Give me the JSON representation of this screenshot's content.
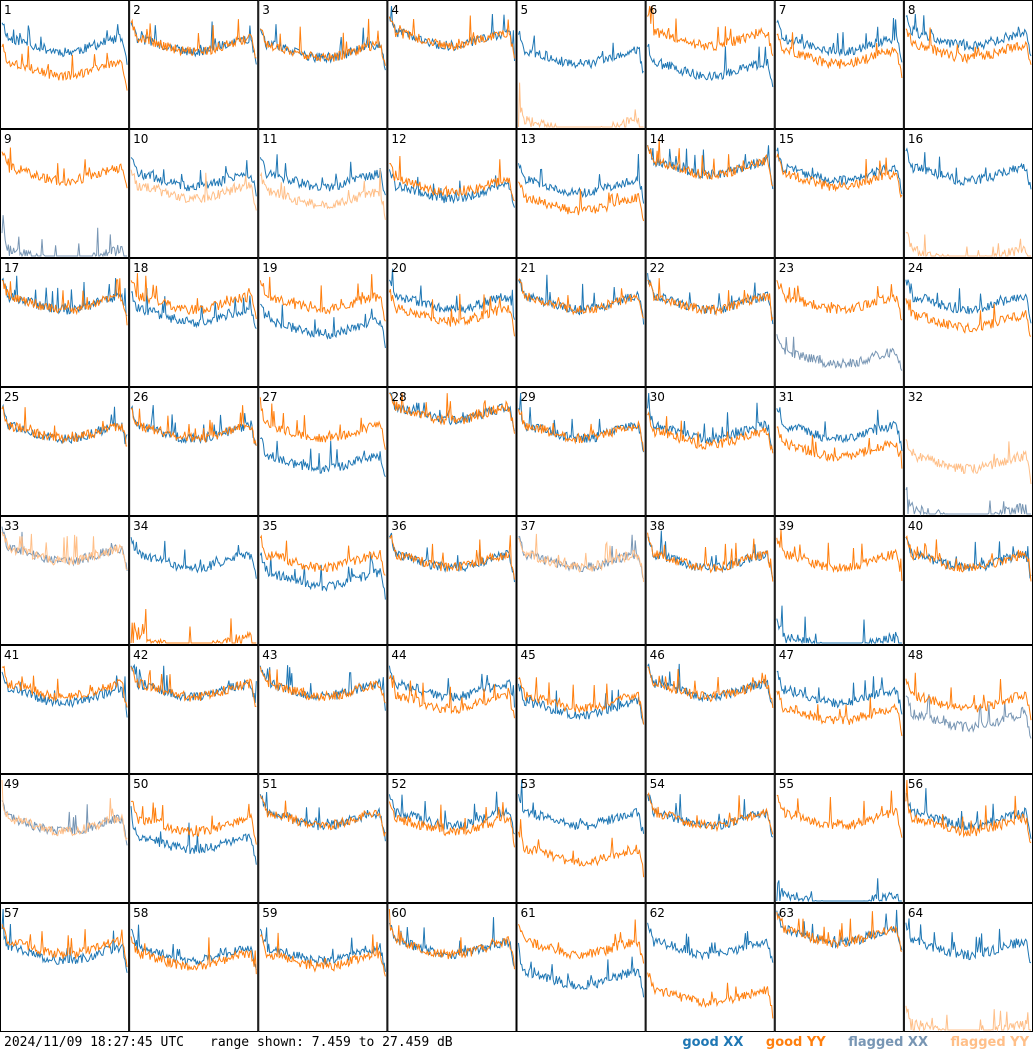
{
  "footer": {
    "timestamp": "2024/11/09 18:27:45 UTC",
    "range_text": "range shown: 7.459 to 27.459 dB"
  },
  "legend": {
    "good_xx": "good XX",
    "good_yy": "good YY",
    "flagged_xx": "flagged XX",
    "flagged_yy": "flagged YY"
  },
  "colors": {
    "good_xx": "#1f77b4",
    "good_yy": "#ff7f0e",
    "flagged_xx": "#7896b4",
    "flagged_yy": "#ffbf88"
  },
  "chart_data": {
    "type": "line",
    "layout": "small-multiples 8x8",
    "ylim": [
      7.459,
      27.459
    ],
    "yunit": "dB",
    "panels": [
      {
        "id": "1",
        "xx": "good",
        "yy": "good",
        "xx_level": 21,
        "yy_level": 17
      },
      {
        "id": "2",
        "xx": "good",
        "yy": "good",
        "xx_level": 21,
        "yy_level": 21
      },
      {
        "id": "3",
        "xx": "good",
        "yy": "good",
        "xx_level": 20,
        "yy_level": 20
      },
      {
        "id": "4",
        "xx": "good",
        "yy": "good",
        "xx_level": 22,
        "yy_level": 22
      },
      {
        "id": "5",
        "xx": "good",
        "yy": "flagged",
        "xx_level": 19,
        "yy_level": 7.5
      },
      {
        "id": "6",
        "xx": "good",
        "yy": "good",
        "xx_level": 17,
        "yy_level": 22
      },
      {
        "id": "7",
        "xx": "good",
        "yy": "good",
        "xx_level": 21,
        "yy_level": 19
      },
      {
        "id": "8",
        "xx": "good",
        "yy": "good",
        "xx_level": 22,
        "yy_level": 20
      },
      {
        "id": "9",
        "xx": "flagged",
        "yy": "good",
        "xx_level": 7.5,
        "yy_level": 21
      },
      {
        "id": "10",
        "xx": "good",
        "yy": "flagged",
        "xx_level": 20,
        "yy_level": 18
      },
      {
        "id": "11",
        "xx": "good",
        "yy": "flagged",
        "xx_level": 20,
        "yy_level": 17
      },
      {
        "id": "12",
        "xx": "good",
        "yy": "good",
        "xx_level": 18,
        "yy_level": 19
      },
      {
        "id": "13",
        "xx": "good",
        "yy": "good",
        "xx_level": 19,
        "yy_level": 16
      },
      {
        "id": "14",
        "xx": "good",
        "yy": "good",
        "xx_level": 22,
        "yy_level": 22
      },
      {
        "id": "15",
        "xx": "good",
        "yy": "good",
        "xx_level": 21,
        "yy_level": 20
      },
      {
        "id": "16",
        "xx": "good",
        "yy": "flagged",
        "xx_level": 21,
        "yy_level": 7.5
      },
      {
        "id": "17",
        "xx": "good",
        "yy": "good",
        "xx_level": 21,
        "yy_level": 21
      },
      {
        "id": "18",
        "xx": "good",
        "yy": "good",
        "xx_level": 19,
        "yy_level": 21
      },
      {
        "id": "19",
        "xx": "good",
        "yy": "good",
        "xx_level": 17,
        "yy_level": 21
      },
      {
        "id": "20",
        "xx": "good",
        "yy": "good",
        "xx_level": 21,
        "yy_level": 19
      },
      {
        "id": "21",
        "xx": "good",
        "yy": "good",
        "xx_level": 21,
        "yy_level": 21
      },
      {
        "id": "22",
        "xx": "good",
        "yy": "good",
        "xx_level": 21,
        "yy_level": 21
      },
      {
        "id": "23",
        "xx": "flagged",
        "yy": "good",
        "xx_level": 12,
        "yy_level": 21
      },
      {
        "id": "24",
        "xx": "good",
        "yy": "good",
        "xx_level": 21,
        "yy_level": 18
      },
      {
        "id": "25",
        "xx": "good",
        "yy": "good",
        "xx_level": 21,
        "yy_level": 21
      },
      {
        "id": "26",
        "xx": "good",
        "yy": "good",
        "xx_level": 21,
        "yy_level": 21
      },
      {
        "id": "27",
        "xx": "good",
        "yy": "good",
        "xx_level": 16,
        "yy_level": 21
      },
      {
        "id": "28",
        "xx": "good",
        "yy": "good",
        "xx_level": 24,
        "yy_level": 24
      },
      {
        "id": "29",
        "xx": "good",
        "yy": "good",
        "xx_level": 21,
        "yy_level": 21
      },
      {
        "id": "30",
        "xx": "good",
        "yy": "good",
        "xx_level": 21,
        "yy_level": 20
      },
      {
        "id": "31",
        "xx": "good",
        "yy": "good",
        "xx_level": 21,
        "yy_level": 18
      },
      {
        "id": "32",
        "xx": "flagged",
        "yy": "flagged",
        "xx_level": 7.5,
        "yy_level": 16
      },
      {
        "id": "33",
        "xx": "flagged",
        "yy": "flagged",
        "xx_level": 22,
        "yy_level": 22
      },
      {
        "id": "34",
        "xx": "good",
        "yy": "good",
        "xx_level": 21,
        "yy_level": 7.5
      },
      {
        "id": "35",
        "xx": "good",
        "yy": "good",
        "xx_level": 18,
        "yy_level": 21
      },
      {
        "id": "36",
        "xx": "good",
        "yy": "good",
        "xx_level": 21,
        "yy_level": 21
      },
      {
        "id": "37",
        "xx": "flagged",
        "yy": "flagged",
        "xx_level": 21,
        "yy_level": 21
      },
      {
        "id": "38",
        "xx": "good",
        "yy": "good",
        "xx_level": 21,
        "yy_level": 21
      },
      {
        "id": "39",
        "xx": "good",
        "yy": "good",
        "xx_level": 7.5,
        "yy_level": 21
      },
      {
        "id": "40",
        "xx": "good",
        "yy": "good",
        "xx_level": 21,
        "yy_level": 21
      },
      {
        "id": "41",
        "xx": "good",
        "yy": "good",
        "xx_level": 20,
        "yy_level": 21
      },
      {
        "id": "42",
        "xx": "good",
        "yy": "good",
        "xx_level": 21,
        "yy_level": 21
      },
      {
        "id": "43",
        "xx": "good",
        "yy": "good",
        "xx_level": 21,
        "yy_level": 21
      },
      {
        "id": "44",
        "xx": "good",
        "yy": "good",
        "xx_level": 21,
        "yy_level": 19
      },
      {
        "id": "45",
        "xx": "good",
        "yy": "good",
        "xx_level": 18,
        "yy_level": 19
      },
      {
        "id": "46",
        "xx": "good",
        "yy": "good",
        "xx_level": 21,
        "yy_level": 21
      },
      {
        "id": "47",
        "xx": "good",
        "yy": "good",
        "xx_level": 20,
        "yy_level": 17
      },
      {
        "id": "48",
        "xx": "flagged",
        "yy": "good",
        "xx_level": 16,
        "yy_level": 19
      },
      {
        "id": "49",
        "xx": "flagged",
        "yy": "flagged",
        "xx_level": 20,
        "yy_level": 20
      },
      {
        "id": "50",
        "xx": "good",
        "yy": "good",
        "xx_level": 17,
        "yy_level": 20
      },
      {
        "id": "51",
        "xx": "good",
        "yy": "good",
        "xx_level": 21,
        "yy_level": 21
      },
      {
        "id": "52",
        "xx": "good",
        "yy": "good",
        "xx_level": 21,
        "yy_level": 20
      },
      {
        "id": "53",
        "xx": "good",
        "yy": "good",
        "xx_level": 21,
        "yy_level": 15
      },
      {
        "id": "54",
        "xx": "good",
        "yy": "good",
        "xx_level": 21,
        "yy_level": 21
      },
      {
        "id": "55",
        "xx": "good",
        "yy": "good",
        "xx_level": 7.5,
        "yy_level": 21
      },
      {
        "id": "56",
        "xx": "good",
        "yy": "good",
        "xx_level": 21,
        "yy_level": 20
      },
      {
        "id": "57",
        "xx": "good",
        "yy": "good",
        "xx_level": 20,
        "yy_level": 21
      },
      {
        "id": "58",
        "xx": "good",
        "yy": "good",
        "xx_level": 20,
        "yy_level": 19
      },
      {
        "id": "59",
        "xx": "good",
        "yy": "good",
        "xx_level": 20,
        "yy_level": 19
      },
      {
        "id": "60",
        "xx": "good",
        "yy": "good",
        "xx_level": 21,
        "yy_level": 21
      },
      {
        "id": "61",
        "xx": "good",
        "yy": "good",
        "xx_level": 16,
        "yy_level": 21
      },
      {
        "id": "62",
        "xx": "good",
        "yy": "good",
        "xx_level": 21,
        "yy_level": 13
      },
      {
        "id": "63",
        "xx": "good",
        "yy": "good",
        "xx_level": 23,
        "yy_level": 23
      },
      {
        "id": "64",
        "xx": "good",
        "yy": "flagged",
        "xx_level": 21,
        "yy_level": 7.5
      }
    ]
  }
}
